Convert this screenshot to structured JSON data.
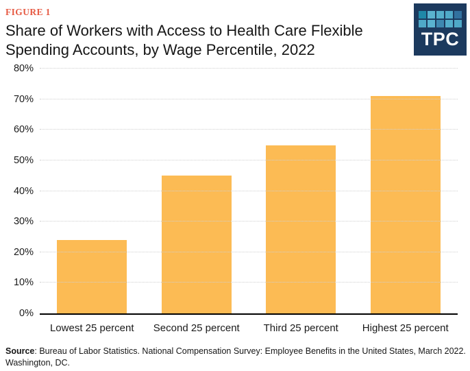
{
  "figure_label": "FIGURE 1",
  "title": "Share of Workers with Access to Health Care Flexible Spending Accounts, by Wage Percentile, 2022",
  "logo": {
    "text": "TPC",
    "bg": "#1C3A5E",
    "squares": [
      "#1F88A8",
      "#5AB3D0",
      "#54AECB",
      "#4FA9C8",
      "#32719F",
      "#4FA9C8",
      "#5AB3D0",
      "#3E88B0",
      "#54AECB",
      "#4FA9C8"
    ]
  },
  "chart_data": {
    "type": "bar",
    "title": "Share of Workers with Access to Health Care Flexible Spending Accounts, by Wage Percentile, 2022",
    "categories": [
      "Lowest 25 percent",
      "Second 25 percent",
      "Third 25 percent",
      "Highest 25 percent"
    ],
    "values": [
      24,
      45,
      55,
      71
    ],
    "xlabel": "",
    "ylabel": "",
    "ylim": [
      0,
      80
    ],
    "yticks": [
      0,
      10,
      20,
      30,
      40,
      50,
      60,
      70,
      80
    ],
    "ytick_suffix": "%",
    "grid": "horizontal-dotted",
    "legend": "none"
  },
  "colors": {
    "bar": "#FCBB54",
    "figure_label": "#E65A43",
    "axis_line": "#000000",
    "gridline": "#CFCFCF"
  },
  "source": {
    "label": "Source",
    "text": ": Bureau of Labor Statistics. National Compensation Survey: Employee Benefits in the United States, March 2022. Washington, DC."
  }
}
